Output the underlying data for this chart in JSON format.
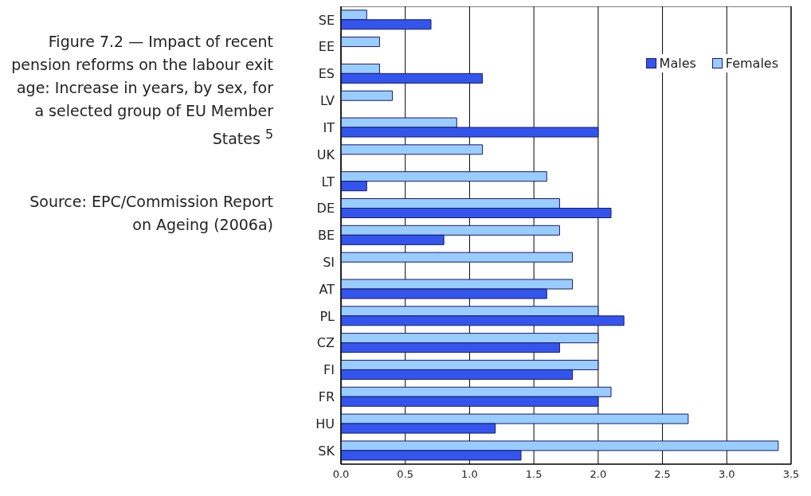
{
  "chart_data": {
    "type": "bar",
    "orientation": "horizontal",
    "title": "Figure 7.2 — Impact of recent pension reforms on the labour exit age: Increase in years, by sex, for a selected group of EU Member States $^{5}$",
    "annotations": [
      "Source: EPC/Commission Report on Ageing (2006a)"
    ],
    "categories": [
      "SE",
      "EE",
      "ES",
      "LV",
      "IT",
      "UK",
      "LT",
      "DE",
      "BE",
      "SI",
      "AT",
      "PL",
      "CZ",
      "FI",
      "FR",
      "HU",
      "SK"
    ],
    "series": [
      {
        "name": "Males",
        "color": "#3355ee",
        "values": [
          0.7,
          null,
          1.1,
          null,
          2.0,
          null,
          0.2,
          2.1,
          0.8,
          null,
          1.6,
          2.2,
          1.7,
          1.8,
          2.0,
          1.2,
          1.4
        ]
      },
      {
        "name": "Females",
        "color": "#99ccff",
        "values": [
          0.2,
          0.3,
          0.3,
          0.4,
          0.9,
          1.1,
          1.6,
          1.7,
          1.7,
          1.8,
          1.8,
          2.0,
          2.0,
          2.0,
          2.1,
          2.7,
          3.4
        ]
      }
    ],
    "xlim": [
      0,
      3.5
    ],
    "xticks": [
      {
        "value": 0,
        "label": "0.0"
      },
      0.5,
      {
        "value": 1,
        "label": "1.0"
      },
      1.5,
      {
        "value": 2,
        "label": "2.0"
      },
      2.5,
      {
        "value": 3,
        "label": "3.0"
      },
      3.5
    ],
    "grid": "x",
    "legend": "top right"
  }
}
